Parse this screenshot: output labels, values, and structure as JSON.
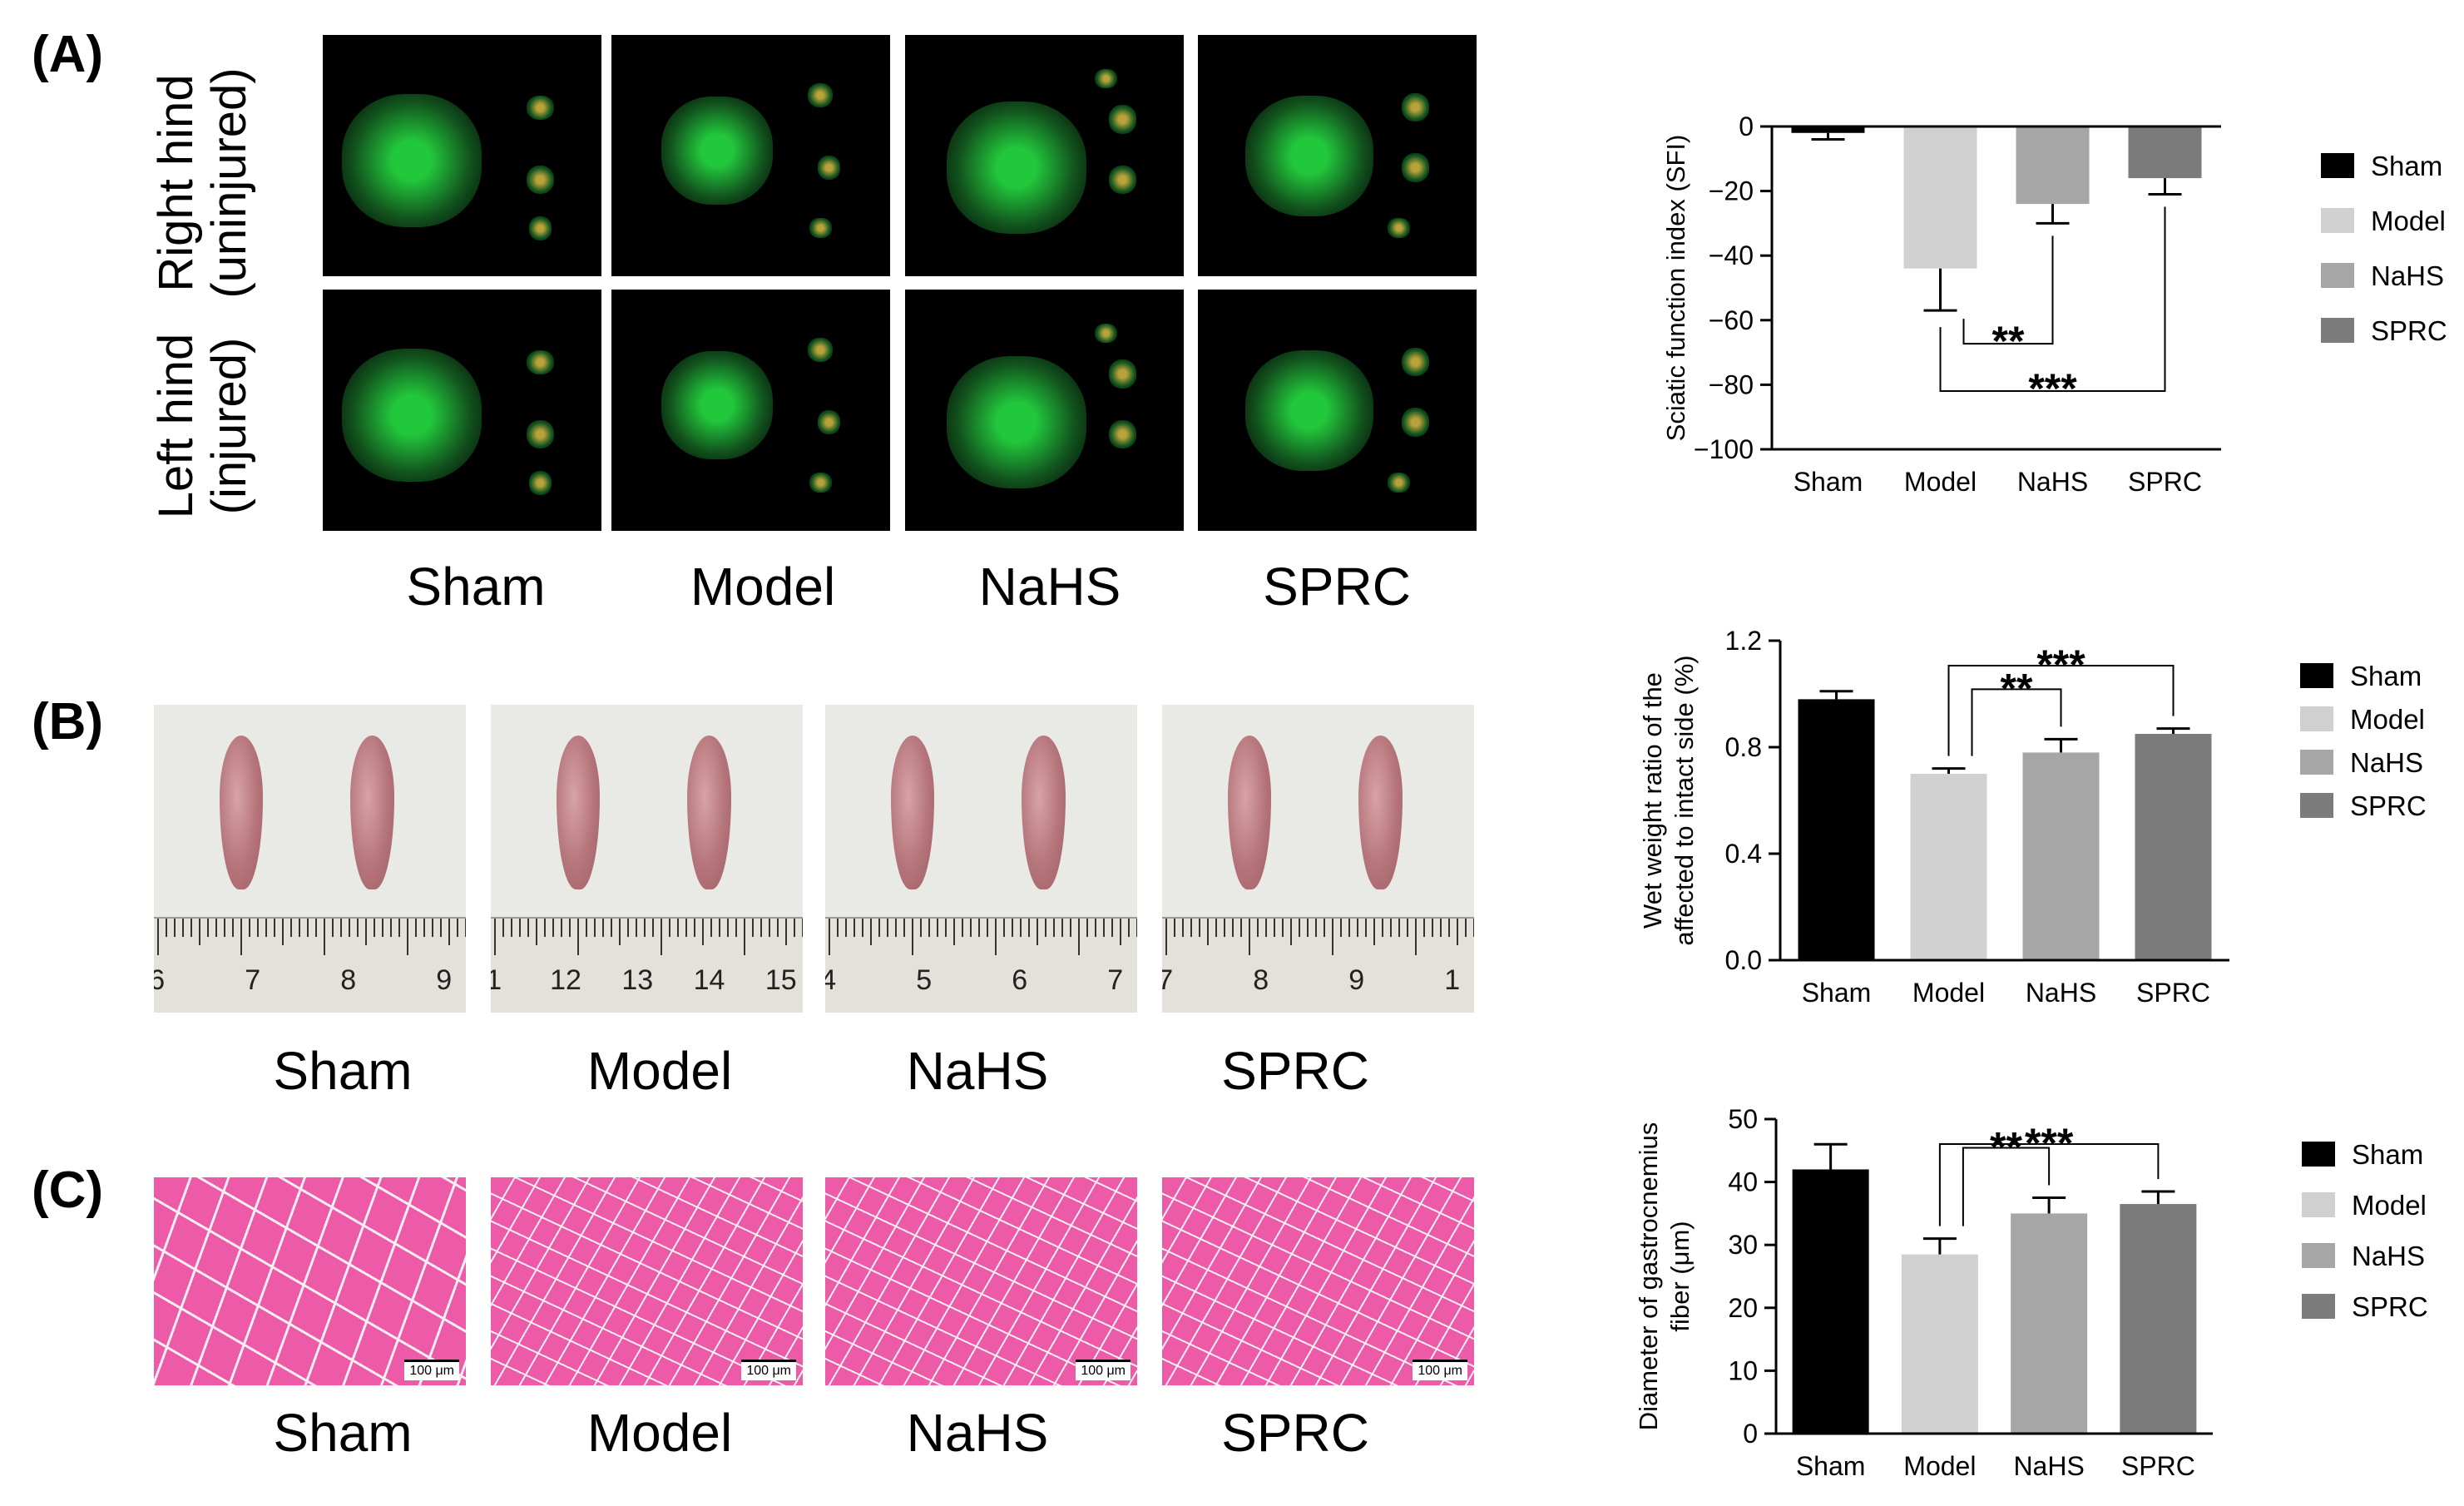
{
  "panels": {
    "a": "(A)",
    "b": "(B)",
    "c": "(C)"
  },
  "groups": [
    "Sham",
    "Model",
    "NaHS",
    "SPRC"
  ],
  "row_labels": {
    "right": [
      "Right hind",
      "(uninjured)"
    ],
    "left": [
      "Left hind",
      "(injured)"
    ]
  },
  "rulers": [
    [
      "6",
      "7",
      "8",
      "9"
    ],
    [
      "1",
      "12",
      "13",
      "14",
      "15"
    ],
    [
      "4",
      "5",
      "6",
      "7"
    ],
    [
      "7",
      "8",
      "9",
      "1"
    ]
  ],
  "scale_bar_label": "100 μm",
  "colors": {
    "Sham": "#000000",
    "Model": "#d0d0d0",
    "NaHS": "#a6a6a6",
    "SPRC": "#7b7b7b",
    "histology_pink": "#ec5aa8",
    "footprint_green": "#22c83c"
  },
  "chart_data": [
    {
      "type": "bar",
      "ylabel": "Sciatic function index (SFI)",
      "categories": [
        "Sham",
        "Model",
        "NaHS",
        "SPRC"
      ],
      "values": [
        -2,
        -44,
        -24,
        -16
      ],
      "errors": [
        2,
        13,
        6,
        5
      ],
      "ylim": [
        -100,
        0
      ],
      "yticks": [
        0,
        -20,
        -40,
        -60,
        -80,
        -100
      ],
      "ytick_labels": [
        "0",
        "−20",
        "−40",
        "−60",
        "−80",
        "−100"
      ],
      "legend": [
        "Sham",
        "Model",
        "NaHS",
        "SPRC"
      ],
      "legend_position": "right",
      "significance": [
        {
          "from": "Model",
          "to": "NaHS",
          "label": "**"
        },
        {
          "from": "Model",
          "to": "SPRC",
          "label": "***"
        }
      ]
    },
    {
      "type": "bar",
      "ylabel": [
        "Wet weight ratio of the",
        "affected  to intact side (%)"
      ],
      "categories": [
        "Sham",
        "Model",
        "NaHS",
        "SPRC"
      ],
      "values": [
        0.98,
        0.7,
        0.78,
        0.85
      ],
      "errors": [
        0.03,
        0.02,
        0.05,
        0.02
      ],
      "ylim": [
        0,
        1.2
      ],
      "yticks": [
        0,
        0.4,
        0.8,
        1.2
      ],
      "ytick_labels": [
        "0.0",
        "0.4",
        "0.8",
        "1.2"
      ],
      "legend": [
        "Sham",
        "Model",
        "NaHS",
        "SPRC"
      ],
      "legend_position": "right",
      "significance": [
        {
          "from": "Model",
          "to": "NaHS",
          "label": "**"
        },
        {
          "from": "Model",
          "to": "SPRC",
          "label": "***"
        }
      ]
    },
    {
      "type": "bar",
      "ylabel": [
        "Diameter of gastrocnemius",
        "fiber (μm)"
      ],
      "categories": [
        "Sham",
        "Model",
        "NaHS",
        "SPRC"
      ],
      "values": [
        42,
        28.5,
        35,
        36.5
      ],
      "errors": [
        4,
        2.5,
        2.5,
        2
      ],
      "ylim": [
        0,
        50
      ],
      "yticks": [
        0,
        10,
        20,
        30,
        40,
        50
      ],
      "ytick_labels": [
        "0",
        "10",
        "20",
        "30",
        "40",
        "50"
      ],
      "legend": [
        "Sham",
        "Model",
        "NaHS",
        "SPRC"
      ],
      "legend_position": "right",
      "significance": [
        {
          "from": "Model",
          "to": "NaHS",
          "label": "**"
        },
        {
          "from": "Model",
          "to": "SPRC",
          "label": "***"
        }
      ]
    }
  ]
}
